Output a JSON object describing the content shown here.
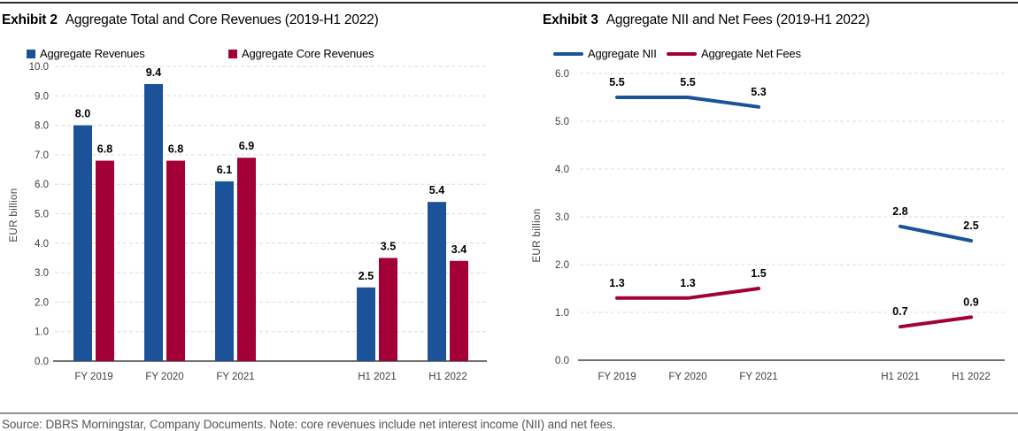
{
  "footer": {
    "source_note": "Source: DBRS Morningstar, Company Documents. Note: core revenues include net interest income (NII) and net fees."
  },
  "colors": {
    "series_blue": "#1C5299",
    "series_red": "#A20036",
    "grid": "#DCDCDC",
    "axis": "#404040",
    "tick_label": "#404040",
    "value_label": "#000000"
  },
  "chart_data": [
    {
      "type": "bar",
      "exhibit": "Exhibit 2",
      "title": "Aggregate Total and Core Revenues (2019-H1 2022)",
      "ylabel": "EUR billion",
      "ylim": [
        0,
        10
      ],
      "ytick_step": 1,
      "grid": "horizontal-dashed",
      "legend_position": "top-left",
      "value_labels": true,
      "categories": [
        "FY 2019",
        "FY 2020",
        "FY 2021",
        null,
        "H1 2021",
        "H1 2022"
      ],
      "series": [
        {
          "name": "Aggregate Revenues",
          "color": "#1C5299",
          "values": [
            8.0,
            9.4,
            6.1,
            null,
            2.5,
            5.4
          ]
        },
        {
          "name": "Aggregate Core Revenues",
          "color": "#A20036",
          "values": [
            6.8,
            6.8,
            6.9,
            null,
            3.5,
            3.4
          ]
        }
      ]
    },
    {
      "type": "line",
      "exhibit": "Exhibit 3",
      "title": "Aggregate NII and Net Fees (2019-H1 2022)",
      "ylabel": "EUR billion",
      "ylim": [
        0,
        6
      ],
      "ytick_step": 1,
      "grid": "horizontal-dashed",
      "legend_position": "top-left",
      "value_labels": true,
      "categories": [
        "FY 2019",
        "FY 2020",
        "FY 2021",
        null,
        "H1 2021",
        "H1 2022"
      ],
      "series": [
        {
          "name": "Aggregate NII",
          "color": "#1C5299",
          "values": [
            5.5,
            5.5,
            5.3,
            null,
            2.8,
            2.5
          ]
        },
        {
          "name": "Aggregate Net Fees",
          "color": "#A20036",
          "values": [
            1.3,
            1.3,
            1.5,
            null,
            0.7,
            0.9
          ]
        }
      ]
    }
  ]
}
